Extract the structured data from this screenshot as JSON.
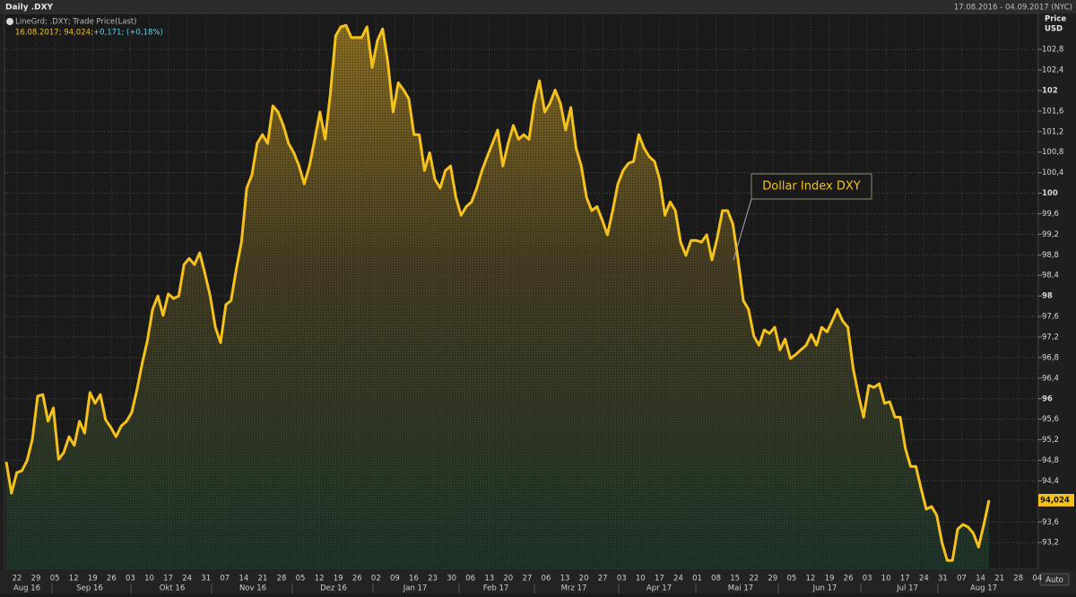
{
  "chart_data": {
    "type": "line",
    "title": "Daily .DXY",
    "date_range": "17.08.2016 - 04.09.2017 (NYC)",
    "legend_line1": "LineGrd; .DXY; Trade Price(Last)",
    "legend_line2_a": "16.08.2017; 94,024;",
    "legend_line2_b": "+0,171; (+0,18%)",
    "axis_title_1": "Price",
    "axis_title_2": "USD",
    "auto_label": "Auto",
    "annotation": "Dollar Index DXY",
    "last_label": "94,024",
    "color": "#f5c21b",
    "grid": true,
    "ylim": [
      92.68,
      103.5
    ],
    "yticks": [
      {
        "value": 93.2,
        "label": "93,2"
      },
      {
        "value": 93.6,
        "label": "93,6"
      },
      {
        "value": 94.4,
        "label": "94,4"
      },
      {
        "value": 94.8,
        "label": "94,8"
      },
      {
        "value": 95.2,
        "label": "95,2"
      },
      {
        "value": 95.6,
        "label": "95,6"
      },
      96,
      {
        "value": 96.4,
        "label": "96,4"
      },
      {
        "value": 96.8,
        "label": "96,8"
      },
      {
        "value": 97.2,
        "label": "97,2"
      },
      {
        "value": 97.6,
        "label": "97,6"
      },
      98,
      {
        "value": 98.4,
        "label": "98,4"
      },
      {
        "value": 98.8,
        "label": "98,8"
      },
      {
        "value": 99.2,
        "label": "99,2"
      },
      {
        "value": 99.6,
        "label": "99,6"
      },
      100,
      {
        "value": 100.4,
        "label": "100,4"
      },
      {
        "value": 100.8,
        "label": "100,8"
      },
      {
        "value": 101.2,
        "label": "101,2"
      },
      {
        "value": 101.6,
        "label": "101,6"
      },
      102,
      {
        "value": 102.4,
        "label": "102,4"
      },
      {
        "value": 102.8,
        "label": "102,8"
      }
    ],
    "day_ticks": [
      "22",
      "29",
      "05",
      "12",
      "19",
      "26",
      "03",
      "10",
      "17",
      "24",
      "31",
      "07",
      "14",
      "21",
      "28",
      "05",
      "12",
      "19",
      "26",
      "02",
      "09",
      "16",
      "23",
      "30",
      "06",
      "13",
      "20",
      "27",
      "06",
      "13",
      "20",
      "27",
      "03",
      "10",
      "17",
      "24",
      "01",
      "08",
      "15",
      "22",
      "29",
      "05",
      "12",
      "19",
      "26",
      "03",
      "10",
      "17",
      "24",
      "31",
      "07",
      "14",
      "21",
      "28",
      "04"
    ],
    "months": [
      "Aug 16",
      "Sep 16",
      "Okt 16",
      "Nov 16",
      "Dez 16",
      "Jan 17",
      "Feb 17",
      "Mrz 17",
      "Apr 17",
      "Mai 17",
      "Jun 17",
      "Jul 17",
      "Aug 17"
    ],
    "values": [
      94.77,
      94.16,
      94.56,
      94.6,
      94.8,
      95.21,
      96.05,
      96.08,
      95.56,
      95.82,
      94.82,
      94.95,
      95.26,
      95.09,
      95.56,
      95.33,
      96.12,
      95.91,
      96.08,
      95.59,
      95.44,
      95.26,
      95.47,
      95.56,
      95.73,
      96.17,
      96.69,
      97.13,
      97.74,
      98.0,
      97.62,
      98.04,
      97.95,
      98.0,
      98.61,
      98.73,
      98.61,
      98.84,
      98.44,
      98.0,
      97.39,
      97.09,
      97.83,
      97.91,
      98.52,
      99.05,
      100.1,
      100.36,
      100.97,
      101.14,
      100.97,
      101.7,
      101.58,
      101.32,
      100.97,
      100.79,
      100.53,
      100.18,
      100.53,
      101.05,
      101.58,
      101.05,
      101.93,
      103.06,
      103.24,
      103.27,
      103.03,
      103.03,
      103.03,
      103.24,
      102.45,
      102.97,
      103.2,
      102.54,
      101.58,
      102.15,
      102.01,
      101.84,
      101.14,
      101.14,
      100.44,
      100.79,
      100.27,
      100.1,
      100.44,
      100.53,
      99.92,
      99.57,
      99.74,
      99.83,
      100.1,
      100.44,
      100.71,
      100.97,
      101.23,
      100.53,
      100.97,
      101.32,
      101.05,
      101.14,
      101.05,
      101.75,
      102.19,
      101.58,
      101.75,
      102.01,
      101.75,
      101.23,
      101.67,
      100.88,
      100.53,
      99.92,
      99.66,
      99.74,
      99.48,
      99.19,
      99.66,
      100.18,
      100.44,
      100.58,
      100.62,
      101.14,
      100.88,
      100.71,
      100.62,
      100.27,
      99.57,
      99.83,
      99.66,
      99.05,
      98.79,
      99.08,
      99.08,
      99.05,
      99.19,
      98.7,
      99.13,
      99.66,
      99.66,
      99.4,
      98.7,
      97.91,
      97.74,
      97.22,
      97.04,
      97.34,
      97.27,
      97.39,
      96.95,
      97.16,
      96.78,
      96.86,
      96.95,
      97.04,
      97.25,
      97.04,
      97.39,
      97.3,
      97.51,
      97.74,
      97.51,
      97.39,
      96.6,
      96.08,
      95.64,
      96.26,
      96.22,
      96.29,
      95.91,
      95.94,
      95.64,
      95.64,
      95.03,
      94.68,
      94.68,
      94.25,
      93.85,
      93.9,
      93.73,
      93.2,
      92.85,
      92.85,
      93.46,
      93.55,
      93.5,
      93.38,
      93.11,
      93.55,
      94.024
    ]
  }
}
